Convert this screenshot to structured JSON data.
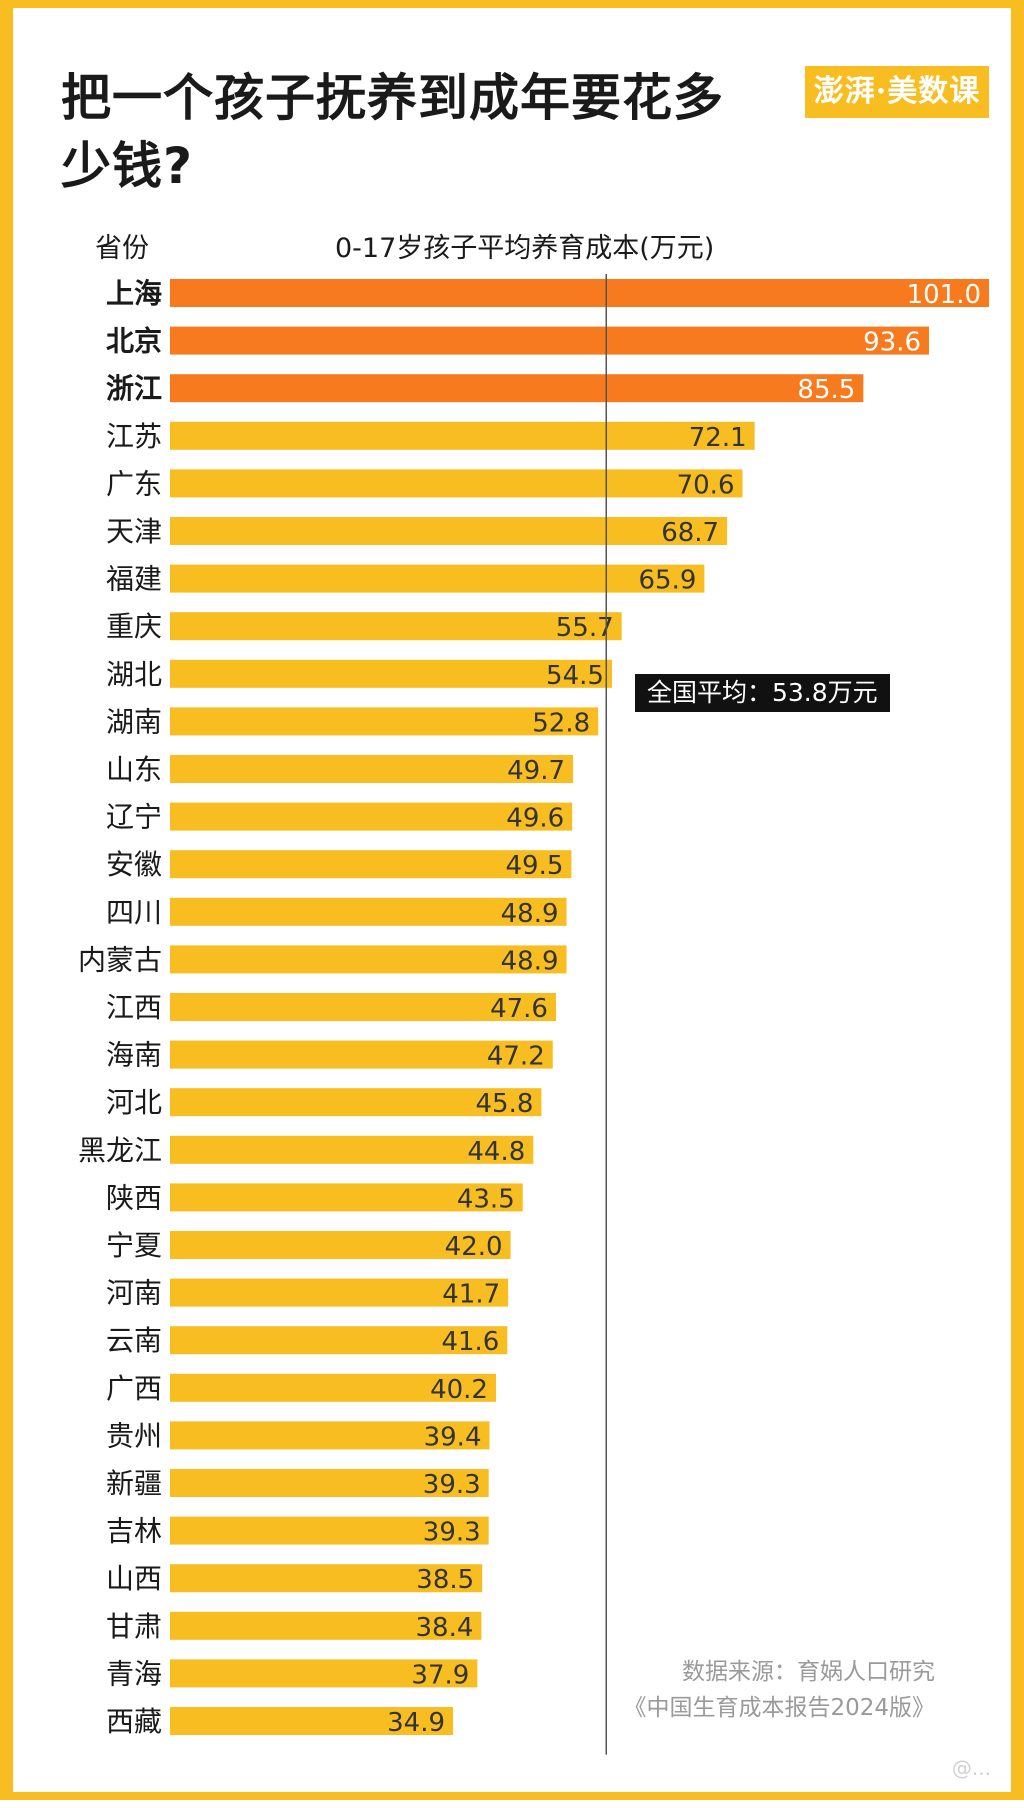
{
  "header": {
    "title": "把一个孩子抚养到成年要花多少钱?",
    "logo_text": "澎湃·美数课"
  },
  "chart_data": {
    "type": "bar",
    "orientation": "horizontal",
    "title": "把一个孩子抚养到成年要花多少钱?",
    "category_label": "省份",
    "value_label": "0-17岁孩子平均养育成本(万元)",
    "categories": [
      "上海",
      "北京",
      "浙江",
      "江苏",
      "广东",
      "天津",
      "福建",
      "重庆",
      "湖北",
      "湖南",
      "山东",
      "辽宁",
      "安徽",
      "四川",
      "内蒙古",
      "江西",
      "海南",
      "河北",
      "黑龙江",
      "陕西",
      "宁夏",
      "河南",
      "云南",
      "广西",
      "贵州",
      "新疆",
      "吉林",
      "山西",
      "甘肃",
      "青海",
      "西藏"
    ],
    "values": [
      101.0,
      93.6,
      85.5,
      72.1,
      70.6,
      68.7,
      65.9,
      55.7,
      54.5,
      52.8,
      49.7,
      49.6,
      49.5,
      48.9,
      48.9,
      47.6,
      47.2,
      45.8,
      44.8,
      43.5,
      42.0,
      41.7,
      41.6,
      40.2,
      39.4,
      39.3,
      39.3,
      38.5,
      38.4,
      37.9,
      34.9
    ],
    "value_labels": [
      "101.0",
      "93.6",
      "85.5",
      "72.1",
      "70.6",
      "68.7",
      "65.9",
      "55.7",
      "54.5",
      "52.8",
      "49.7",
      "49.6",
      "49.5",
      "48.9",
      "48.9",
      "47.6",
      "47.2",
      "45.8",
      "44.8",
      "43.5",
      "42.0",
      "41.7",
      "41.6",
      "40.2",
      "39.4",
      "39.3",
      "39.3",
      "38.5",
      "38.4",
      "37.9",
      "34.9"
    ],
    "highlighted": [
      "上海",
      "北京",
      "浙江"
    ],
    "reference_line": {
      "value": 53.8,
      "label": "全国平均：53.8万元"
    },
    "xlim": [
      0,
      101.0
    ],
    "colors": {
      "bar": "#f7bd21",
      "highlight": "#f77b1e",
      "reference": "#555555"
    }
  },
  "source": {
    "line1": "数据来源：育娲人口研究",
    "line2": "《中国生育成本报告2024版》"
  },
  "watermark": "@..."
}
